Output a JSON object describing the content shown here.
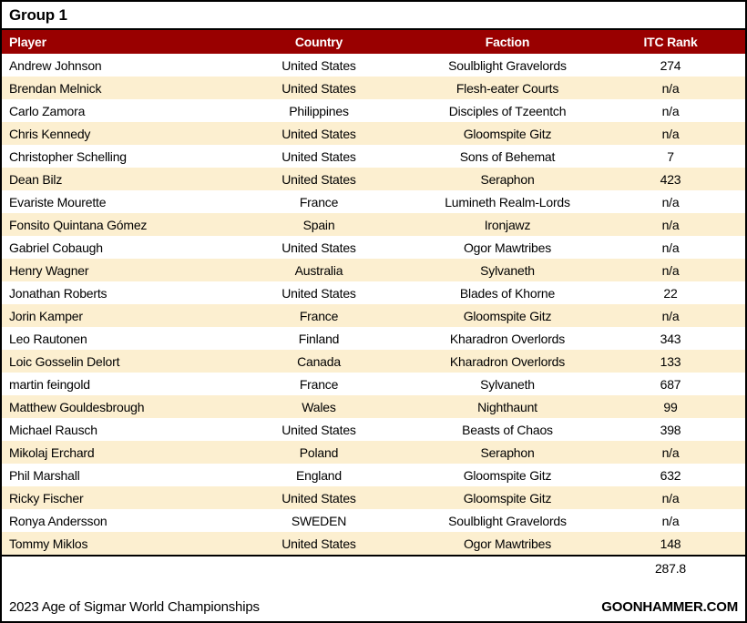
{
  "title": "Group 1",
  "table": {
    "columns": [
      {
        "label": "Player"
      },
      {
        "label": "Country"
      },
      {
        "label": "Faction"
      },
      {
        "label": "ITC Rank"
      }
    ],
    "rows": [
      [
        "Andrew Johnson",
        "United States",
        "Soulblight Gravelords",
        "274"
      ],
      [
        "Brendan Melnick",
        "United States",
        "Flesh-eater Courts",
        "n/a"
      ],
      [
        "Carlo Zamora",
        "Philippines",
        "Disciples of Tzeentch",
        "n/a"
      ],
      [
        "Chris Kennedy",
        "United States",
        "Gloomspite Gitz",
        "n/a"
      ],
      [
        "Christopher Schelling",
        "United States",
        "Sons of Behemat",
        "7"
      ],
      [
        "Dean Bilz",
        "United States",
        "Seraphon",
        "423"
      ],
      [
        "Evariste Mourette",
        "France",
        "Lumineth Realm-Lords",
        "n/a"
      ],
      [
        "Fonsito Quintana Gómez",
        "Spain",
        "Ironjawz",
        "n/a"
      ],
      [
        "Gabriel Cobaugh",
        "United States",
        "Ogor Mawtribes",
        "n/a"
      ],
      [
        "Henry Wagner",
        "Australia",
        "Sylvaneth",
        "n/a"
      ],
      [
        "Jonathan Roberts",
        "United States",
        "Blades of Khorne",
        "22"
      ],
      [
        "Jorin Kamper",
        "France",
        "Gloomspite Gitz",
        "n/a"
      ],
      [
        "Leo Rautonen",
        "Finland",
        "Kharadron Overlords",
        "343"
      ],
      [
        "Loic Gosselin Delort",
        "Canada",
        "Kharadron Overlords",
        "133"
      ],
      [
        "martin feingold",
        "France",
        "Sylvaneth",
        "687"
      ],
      [
        "Matthew Gouldesbrough",
        "Wales",
        "Nighthaunt",
        "99"
      ],
      [
        "Michael Rausch",
        "United States",
        "Beasts of Chaos",
        "398"
      ],
      [
        "Mikolaj Erchard",
        "Poland",
        "Seraphon",
        "n/a"
      ],
      [
        "Phil Marshall",
        "England",
        "Gloomspite Gitz",
        "632"
      ],
      [
        "Ricky Fischer",
        "United States",
        "Gloomspite Gitz",
        "n/a"
      ],
      [
        "Ronya Andersson",
        "SWEDEN",
        "Soulblight Gravelords",
        "n/a"
      ],
      [
        "Tommy Miklos",
        "United States",
        "Ogor Mawtribes",
        "148"
      ]
    ]
  },
  "summary": {
    "average_itc_rank": "287.8"
  },
  "footer": {
    "left": "2023 Age of Sigmar World Championships",
    "right": "GOONHAMMER.COM"
  },
  "colors": {
    "header_bg": "#990000",
    "header_text": "#FFFFFF",
    "row_alt_bg": "#FCEFD0",
    "border": "#000000"
  }
}
